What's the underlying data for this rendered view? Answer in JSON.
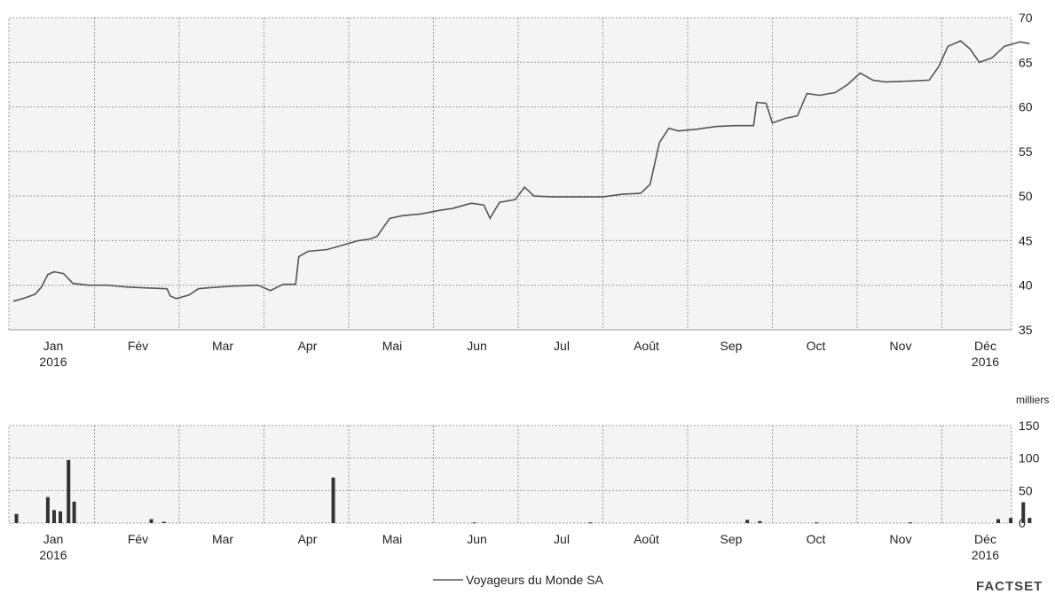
{
  "chart_data": [
    {
      "type": "line",
      "name": "price",
      "series": [
        {
          "name": "Voyageurs du Monde SA",
          "points": [
            [
              0,
              38.2
            ],
            [
              0.2,
              38.6
            ],
            [
              0.35,
              39.0
            ],
            [
              0.45,
              39.8
            ],
            [
              0.55,
              41.2
            ],
            [
              0.65,
              41.5
            ],
            [
              0.8,
              41.3
            ],
            [
              0.95,
              40.2
            ],
            [
              1.2,
              40.0
            ],
            [
              1.5,
              40.0
            ],
            [
              1.8,
              39.8
            ],
            [
              2.1,
              39.7
            ],
            [
              2.45,
              39.6
            ],
            [
              2.5,
              38.8
            ],
            [
              2.6,
              38.5
            ],
            [
              2.8,
              38.9
            ],
            [
              2.95,
              39.6
            ],
            [
              3.1,
              39.7
            ],
            [
              3.5,
              39.9
            ],
            [
              3.9,
              40.0
            ],
            [
              4.1,
              39.4
            ],
            [
              4.3,
              40.1
            ],
            [
              4.5,
              40.1
            ],
            [
              4.55,
              43.2
            ],
            [
              4.7,
              43.8
            ],
            [
              5.0,
              44.0
            ],
            [
              5.3,
              44.6
            ],
            [
              5.5,
              45.0
            ],
            [
              5.7,
              45.2
            ],
            [
              5.8,
              45.5
            ],
            [
              6.0,
              47.5
            ],
            [
              6.2,
              47.8
            ],
            [
              6.5,
              48.0
            ],
            [
              6.8,
              48.4
            ],
            [
              7.0,
              48.6
            ],
            [
              7.3,
              49.2
            ],
            [
              7.5,
              49.0
            ],
            [
              7.6,
              47.5
            ],
            [
              7.75,
              49.3
            ],
            [
              8.0,
              49.6
            ],
            [
              8.15,
              51.0
            ],
            [
              8.3,
              50.0
            ],
            [
              8.6,
              49.9
            ],
            [
              9.0,
              49.9
            ],
            [
              9.4,
              49.9
            ],
            [
              9.7,
              50.2
            ],
            [
              10.0,
              50.3
            ],
            [
              10.15,
              51.3
            ],
            [
              10.3,
              56.0
            ],
            [
              10.45,
              57.6
            ],
            [
              10.6,
              57.3
            ],
            [
              10.9,
              57.5
            ],
            [
              11.2,
              57.8
            ],
            [
              11.5,
              57.9
            ],
            [
              11.8,
              57.9
            ],
            [
              11.85,
              60.5
            ],
            [
              12.0,
              60.4
            ],
            [
              12.1,
              58.2
            ],
            [
              12.3,
              58.7
            ],
            [
              12.5,
              59.0
            ],
            [
              12.65,
              61.5
            ],
            [
              12.85,
              61.3
            ],
            [
              13.1,
              61.6
            ],
            [
              13.3,
              62.5
            ],
            [
              13.5,
              63.8
            ],
            [
              13.7,
              63.0
            ],
            [
              13.9,
              62.8
            ],
            [
              14.3,
              62.9
            ],
            [
              14.6,
              63.0
            ],
            [
              14.75,
              64.5
            ],
            [
              14.9,
              66.8
            ],
            [
              15.1,
              67.4
            ],
            [
              15.25,
              66.5
            ],
            [
              15.4,
              65.0
            ],
            [
              15.6,
              65.5
            ],
            [
              15.8,
              66.8
            ],
            [
              16.05,
              67.3
            ],
            [
              16.2,
              67.1
            ]
          ]
        }
      ],
      "ylim": [
        35,
        70
      ],
      "yticks": [
        35,
        40,
        45,
        50,
        55,
        60,
        65,
        70
      ],
      "grid": true
    },
    {
      "type": "bar",
      "name": "volume",
      "unit": "milliers",
      "ylim": [
        0,
        150
      ],
      "yticks": [
        0,
        50,
        100,
        150
      ],
      "grid": true,
      "bars": [
        [
          0.05,
          14
        ],
        [
          0.55,
          40
        ],
        [
          0.65,
          20
        ],
        [
          0.75,
          18
        ],
        [
          0.88,
          97
        ],
        [
          0.97,
          33
        ],
        [
          2.2,
          6
        ],
        [
          2.4,
          2
        ],
        [
          5.1,
          70
        ],
        [
          7.35,
          1
        ],
        [
          9.2,
          1
        ],
        [
          11.7,
          5
        ],
        [
          11.9,
          3
        ],
        [
          12.8,
          1
        ],
        [
          14.3,
          1
        ],
        [
          15.7,
          6
        ],
        [
          15.9,
          8
        ],
        [
          16.1,
          32
        ],
        [
          16.2,
          8
        ]
      ]
    }
  ],
  "x_axis": {
    "months": [
      "Jan",
      "Fév",
      "Mar",
      "Apr",
      "Mai",
      "Jun",
      "Jul",
      "Août",
      "Sep",
      "Oct",
      "Nov",
      "Déc"
    ],
    "year_labels": {
      "Jan": "2016",
      "Déc": "2016"
    }
  },
  "legend": {
    "label": "Voyageurs du Monde SA",
    "position": "bottom-center"
  },
  "brand": "FACTSET"
}
